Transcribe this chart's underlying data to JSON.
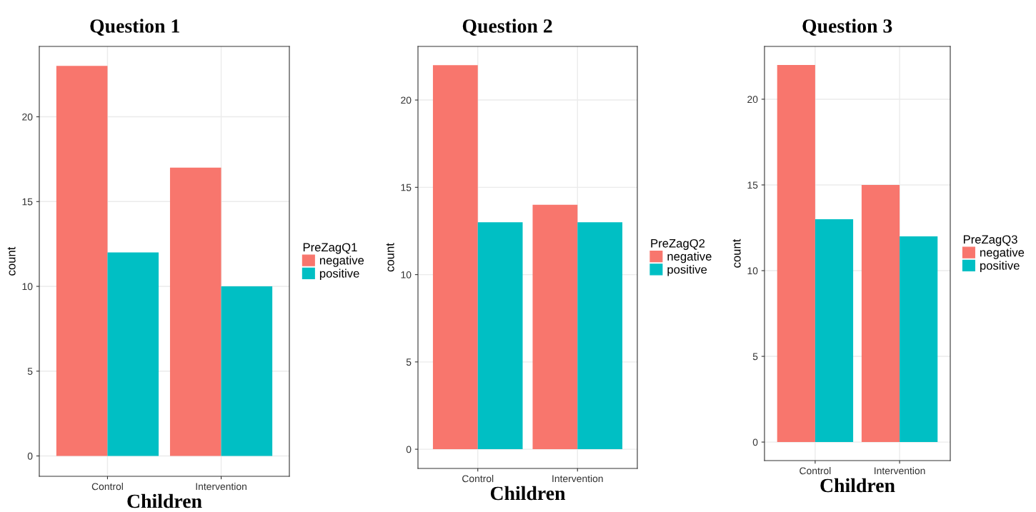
{
  "chart_data": [
    {
      "type": "bar",
      "title": "Question 1",
      "xlabel": "Children",
      "ylabel": "count",
      "legend_title": "PreZagQ1",
      "categories": [
        "Control",
        "Intervention"
      ],
      "series": [
        {
          "name": "negative",
          "color": "#f8766d",
          "values": [
            23,
            17
          ]
        },
        {
          "name": "positive",
          "color": "#00bfc4",
          "values": [
            12,
            10
          ]
        }
      ],
      "ylim": [
        -1.2,
        24.15
      ],
      "yticks": [
        0,
        5,
        10,
        15,
        20
      ],
      "grid": true,
      "legend": "right"
    },
    {
      "type": "bar",
      "title": "Question 2",
      "xlabel": "Children",
      "ylabel": "count",
      "legend_title": "PreZagQ2",
      "categories": [
        "Control",
        "Intervention"
      ],
      "series": [
        {
          "name": "negative",
          "color": "#f8766d",
          "values": [
            22,
            14
          ]
        },
        {
          "name": "positive",
          "color": "#00bfc4",
          "values": [
            13,
            13
          ]
        }
      ],
      "ylim": [
        -1.1,
        23.07
      ],
      "yticks": [
        0,
        5,
        10,
        15,
        20
      ],
      "grid": true,
      "legend": "right"
    },
    {
      "type": "bar",
      "title": "Question 3",
      "xlabel": "Children",
      "ylabel": "count",
      "legend_title": "PreZagQ3",
      "categories": [
        "Control",
        "Intervention"
      ],
      "series": [
        {
          "name": "negative",
          "color": "#f8766d",
          "values": [
            22,
            15
          ]
        },
        {
          "name": "positive",
          "color": "#00bfc4",
          "values": [
            13,
            12
          ]
        }
      ],
      "ylim": [
        -1.08,
        23.08
      ],
      "yticks": [
        0,
        5,
        10,
        15,
        20
      ],
      "grid": true,
      "legend": "right"
    }
  ]
}
